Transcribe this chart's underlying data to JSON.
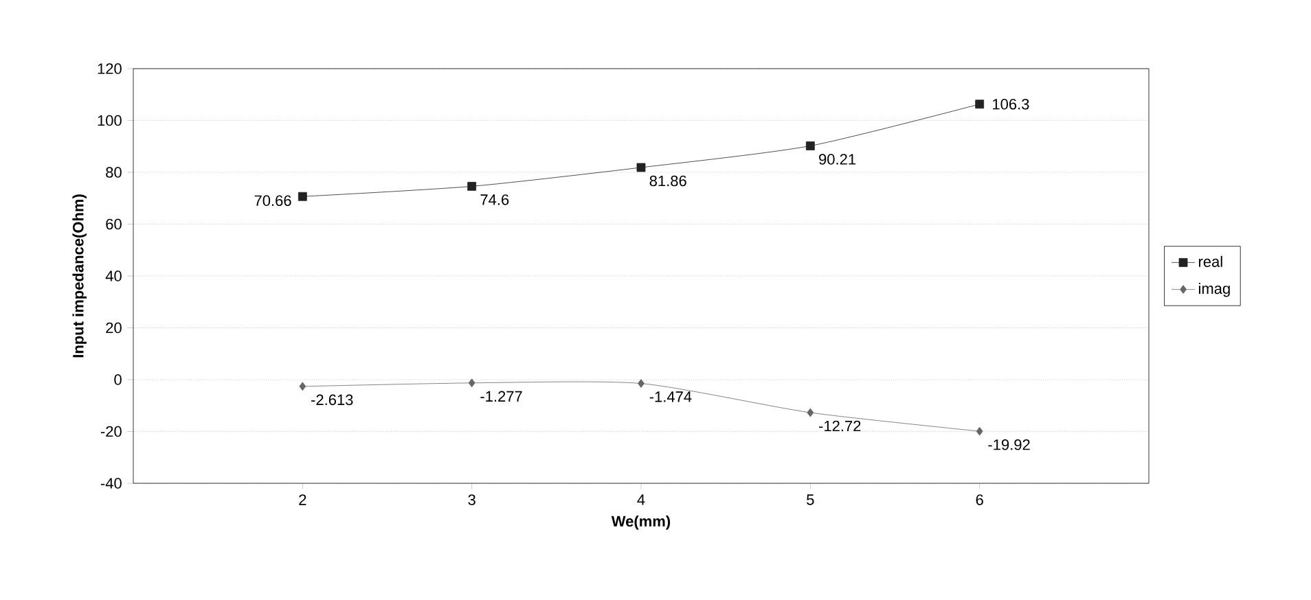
{
  "chart_data": {
    "type": "line",
    "xlabel": "We(mm)",
    "ylabel": "Input impedance(Ohm)",
    "x": [
      2,
      3,
      4,
      5,
      6
    ],
    "series": [
      {
        "name": "real",
        "color": "#222222",
        "marker": "square",
        "values": [
          70.66,
          74.6,
          81.86,
          90.21,
          106.3
        ]
      },
      {
        "name": "imag",
        "color": "#666666",
        "marker": "diamond",
        "values": [
          -2.613,
          -1.277,
          -1.474,
          -12.72,
          -19.92
        ]
      }
    ],
    "xlim": [
      1,
      7
    ],
    "xticks": [
      2,
      3,
      4,
      5,
      6
    ],
    "ylim": [
      -40,
      120
    ],
    "yticks": [
      -40,
      -20,
      0,
      20,
      40,
      60,
      80,
      100,
      120
    ],
    "grid": "y",
    "legend": "right",
    "data_labels": true,
    "line_style": "solid"
  }
}
